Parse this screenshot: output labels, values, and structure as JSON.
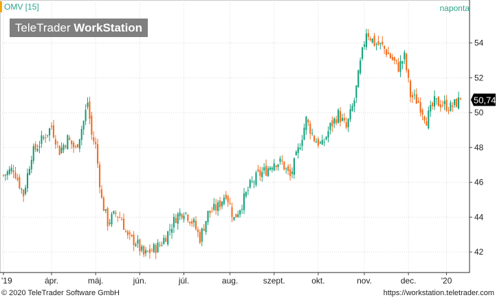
{
  "header": {
    "symbol": "OMV [15]",
    "period": "naponta",
    "logo_light": "TeleTrader ",
    "logo_bold": "WorkStation"
  },
  "footer": {
    "copyright": "© 2020 TeleTrader Software GmbH",
    "website": "https://workstation.teletrader.com"
  },
  "colors": {
    "up": "#12a07a",
    "down": "#f26b1d",
    "grid": "#d9d9d9",
    "price_tag_bg": "#000000",
    "price_tag_text": "#ffffff"
  },
  "chart_data": {
    "type": "candlestick",
    "x_axis_labels": [
      {
        "label": "'19",
        "bar": 0
      },
      {
        "label": "ápr.",
        "bar": 24
      },
      {
        "label": "máj.",
        "bar": 46
      },
      {
        "label": "jún.",
        "bar": 68
      },
      {
        "label": "júl.",
        "bar": 90
      },
      {
        "label": "aug.",
        "bar": 113
      },
      {
        "label": "szept.",
        "bar": 135
      },
      {
        "label": "okt.",
        "bar": 157
      },
      {
        "label": "nov.",
        "bar": 180
      },
      {
        "label": "dec.",
        "bar": 202
      },
      {
        "label": "'20",
        "bar": 221
      }
    ],
    "y_ticks": [
      42,
      44,
      46,
      48,
      50,
      52,
      54
    ],
    "ylim": [
      40.9,
      55.6
    ],
    "last_price": 50.74,
    "last_price_label": "50,74",
    "anchors": [
      [
        0,
        46.4
      ],
      [
        5,
        46.8
      ],
      [
        10,
        45.3
      ],
      [
        14,
        47.6
      ],
      [
        19,
        48.4
      ],
      [
        24,
        49.2
      ],
      [
        28,
        47.8
      ],
      [
        32,
        48.5
      ],
      [
        36,
        47.9
      ],
      [
        40,
        49.5
      ],
      [
        42,
        50.6
      ],
      [
        44,
        48.7
      ],
      [
        46,
        48.1
      ],
      [
        49,
        45.0
      ],
      [
        52,
        43.7
      ],
      [
        56,
        44.2
      ],
      [
        59,
        43.9
      ],
      [
        62,
        42.8
      ],
      [
        66,
        42.6
      ],
      [
        70,
        41.8
      ],
      [
        74,
        42.1
      ],
      [
        78,
        42.4
      ],
      [
        82,
        43.1
      ],
      [
        86,
        44.0
      ],
      [
        90,
        44.4
      ],
      [
        95,
        43.6
      ],
      [
        98,
        42.8
      ],
      [
        102,
        44.2
      ],
      [
        107,
        44.6
      ],
      [
        111,
        45.4
      ],
      [
        115,
        43.9
      ],
      [
        119,
        44.8
      ],
      [
        123,
        45.8
      ],
      [
        127,
        46.4
      ],
      [
        131,
        46.7
      ],
      [
        135,
        47.2
      ],
      [
        139,
        47.1
      ],
      [
        143,
        46.3
      ],
      [
        147,
        47.8
      ],
      [
        151,
        49.6
      ],
      [
        155,
        48.5
      ],
      [
        159,
        48.1
      ],
      [
        163,
        49.2
      ],
      [
        167,
        49.9
      ],
      [
        171,
        49.1
      ],
      [
        175,
        50.7
      ],
      [
        178,
        52.8
      ],
      [
        181,
        54.7
      ],
      [
        185,
        54.0
      ],
      [
        189,
        53.8
      ],
      [
        193,
        53.2
      ],
      [
        197,
        52.6
      ],
      [
        200,
        53.2
      ],
      [
        203,
        51.0
      ],
      [
        207,
        50.6
      ],
      [
        211,
        49.6
      ],
      [
        215,
        50.6
      ],
      [
        219,
        50.5
      ],
      [
        223,
        50.3
      ],
      [
        228,
        50.74
      ]
    ],
    "bar_count": 229
  }
}
